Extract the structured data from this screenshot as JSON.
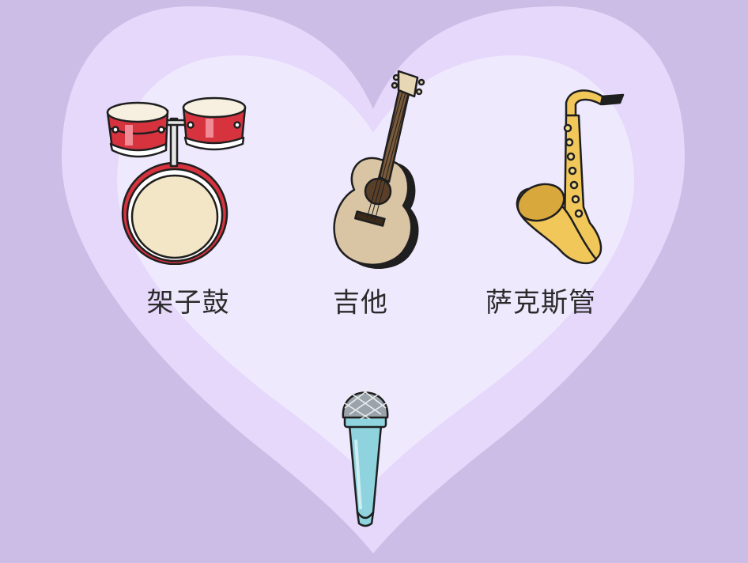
{
  "colors": {
    "background": "#cbbde6",
    "heart_outer": "#e5d8fb",
    "heart_inner": "#efe9fe",
    "outline": "#1f1f1f",
    "drum_red": "#d6333f",
    "drum_head": "#f3e6c6",
    "guitar_body": "#d9c4a4",
    "sax_gold": "#f1c75a",
    "mic_teal": "#8fd3de",
    "mic_grill": "#9aa3aa"
  },
  "instruments": [
    {
      "id": "drums",
      "label": "架子鼓",
      "icon": "drum-kit-icon"
    },
    {
      "id": "guitar",
      "label": "吉他",
      "icon": "acoustic-guitar-icon"
    },
    {
      "id": "saxophone",
      "label": "萨克斯管",
      "icon": "saxophone-icon"
    },
    {
      "id": "microphone",
      "label": "",
      "icon": "microphone-icon"
    }
  ]
}
